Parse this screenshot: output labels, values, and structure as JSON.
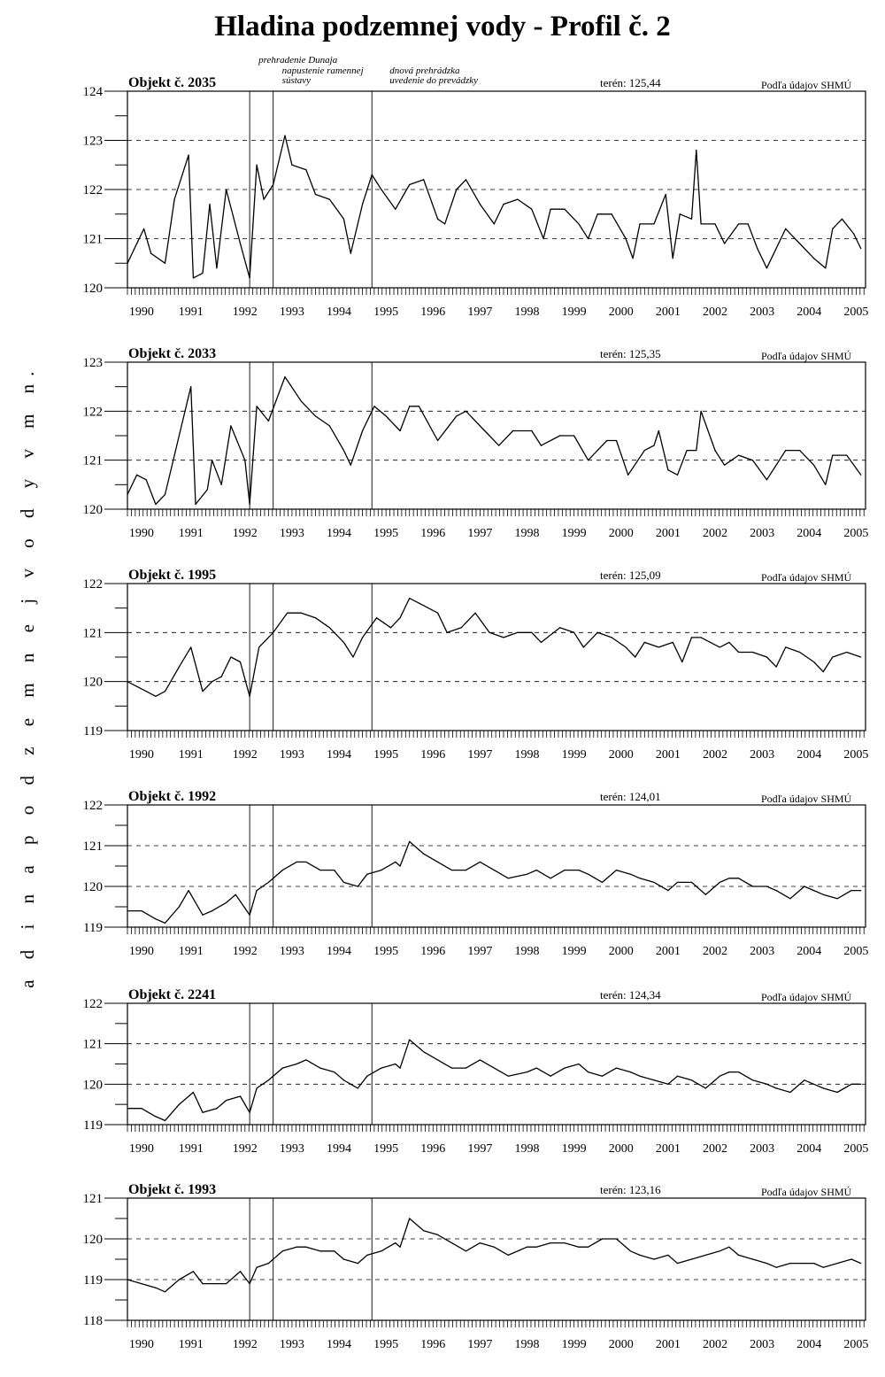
{
  "title": "Hladina podzemnej vody  - Profil č. 2",
  "y_axis_label": "H l a d i n a   p o d z e m n e j   v o d y   v   m   n.   m.",
  "events": [
    {
      "year": 1992.6,
      "text": "prehradenie Dunaja"
    },
    {
      "year": 1993.1,
      "text": "napustenie ramennej sústavy"
    },
    {
      "year": 1995.2,
      "text": "dnová prehrádzka uvedenie do prevádzky"
    }
  ],
  "source_label": "Podľa údajov SHMÚ",
  "chart_data": [
    {
      "type": "line",
      "title": "Objekt č. 2035",
      "teren": "terén:  125,44",
      "ylim": [
        120,
        124
      ],
      "yticks": [
        120,
        121,
        122,
        123,
        124
      ],
      "xticks": [
        "1990",
        "1991",
        "1992",
        "1993",
        "1994",
        "1995",
        "1996",
        "1997",
        "1998",
        "1999",
        "2000",
        "2001",
        "2002",
        "2003",
        "2004",
        "2005"
      ],
      "x": [
        1990.0,
        1990.2,
        1990.35,
        1990.5,
        1990.8,
        1991.0,
        1991.3,
        1991.4,
        1991.6,
        1991.75,
        1991.9,
        1992.1,
        1992.4,
        1992.6,
        1992.75,
        1992.9,
        1993.1,
        1993.35,
        1993.5,
        1993.8,
        1994.0,
        1994.3,
        1994.6,
        1994.75,
        1995.0,
        1995.2,
        1995.4,
        1995.7,
        1996.0,
        1996.3,
        1996.6,
        1996.75,
        1997.0,
        1997.2,
        1997.5,
        1997.8,
        1998.0,
        1998.3,
        1998.6,
        1998.85,
        1999.0,
        1999.3,
        1999.6,
        1999.8,
        2000.0,
        2000.3,
        2000.6,
        2000.75,
        2000.9,
        2001.2,
        2001.45,
        2001.6,
        2001.75,
        2002.0,
        2002.1,
        2002.2,
        2002.5,
        2002.7,
        2003.0,
        2003.2,
        2003.4,
        2003.6,
        2004.0,
        2004.3,
        2004.6,
        2004.85,
        2005.0,
        2005.2,
        2005.45,
        2005.6
      ],
      "y": [
        120.5,
        120.9,
        121.2,
        120.7,
        120.5,
        121.8,
        122.7,
        120.2,
        120.3,
        121.7,
        120.4,
        122.0,
        120.9,
        120.2,
        122.5,
        121.8,
        122.1,
        123.1,
        122.5,
        122.4,
        121.9,
        121.8,
        121.4,
        120.7,
        121.7,
        122.3,
        122.0,
        121.6,
        122.1,
        122.2,
        121.4,
        121.3,
        122.0,
        122.2,
        121.7,
        121.3,
        121.7,
        121.8,
        121.6,
        121.0,
        121.6,
        121.6,
        121.3,
        121.0,
        121.5,
        121.5,
        121.0,
        120.6,
        121.3,
        121.3,
        121.9,
        120.6,
        121.5,
        121.4,
        122.8,
        121.3,
        121.3,
        120.9,
        121.3,
        121.3,
        120.8,
        120.4,
        121.2,
        120.9,
        120.6,
        120.4,
        121.2,
        121.4,
        121.1,
        120.8
      ]
    },
    {
      "type": "line",
      "title": "Objekt č. 2033",
      "teren": "terén:  125,35",
      "ylim": [
        120,
        123
      ],
      "yticks": [
        120,
        121,
        122,
        123
      ],
      "xticks": [
        "1990",
        "1991",
        "1992",
        "1993",
        "1994",
        "1995",
        "1996",
        "1997",
        "1998",
        "1999",
        "2000",
        "2001",
        "2002",
        "2003",
        "2004",
        "2005"
      ],
      "x": [
        1990.0,
        1990.2,
        1990.4,
        1990.6,
        1990.8,
        1991.1,
        1991.35,
        1991.45,
        1991.7,
        1991.8,
        1992.0,
        1992.2,
        1992.5,
        1992.6,
        1992.75,
        1993.0,
        1993.35,
        1993.7,
        1994.0,
        1994.3,
        1994.6,
        1994.75,
        1995.0,
        1995.25,
        1995.5,
        1995.8,
        1996.0,
        1996.2,
        1996.6,
        1997.0,
        1997.2,
        1997.6,
        1997.9,
        1998.2,
        1998.6,
        1998.8,
        1999.2,
        1999.5,
        1999.8,
        2000.2,
        2000.4,
        2000.65,
        2001.0,
        2001.2,
        2001.3,
        2001.5,
        2001.7,
        2001.9,
        2002.1,
        2002.2,
        2002.5,
        2002.7,
        2003.0,
        2003.3,
        2003.6,
        2004.0,
        2004.3,
        2004.6,
        2004.85,
        2005.0,
        2005.3,
        2005.6
      ],
      "y": [
        120.3,
        120.7,
        120.6,
        120.1,
        120.3,
        121.5,
        122.5,
        120.1,
        120.4,
        121.0,
        120.5,
        121.7,
        121.0,
        120.1,
        122.1,
        121.8,
        122.7,
        122.2,
        121.9,
        121.7,
        121.2,
        120.9,
        121.6,
        122.1,
        121.9,
        121.6,
        122.1,
        122.1,
        121.4,
        121.9,
        122.0,
        121.6,
        121.3,
        121.6,
        121.6,
        121.3,
        121.5,
        121.5,
        121.0,
        121.4,
        121.4,
        120.7,
        121.2,
        121.3,
        121.6,
        120.8,
        120.7,
        121.2,
        121.2,
        122.0,
        121.2,
        120.9,
        121.1,
        121.0,
        120.6,
        121.2,
        121.2,
        120.9,
        120.5,
        121.1,
        121.1,
        120.7
      ]
    },
    {
      "type": "line",
      "title": "Objekt č. 1995",
      "teren": "terén:  125,09",
      "ylim": [
        119,
        122
      ],
      "yticks": [
        119,
        120,
        121,
        122
      ],
      "xticks": [
        "1990",
        "1991",
        "1992",
        "1993",
        "1994",
        "1995",
        "1996",
        "1997",
        "1998",
        "1999",
        "2000",
        "2001",
        "2002",
        "2003",
        "2004",
        "2005"
      ],
      "x": [
        1990.0,
        1990.2,
        1990.4,
        1990.6,
        1990.8,
        1991.1,
        1991.35,
        1991.6,
        1991.8,
        1992.0,
        1992.2,
        1992.4,
        1992.6,
        1992.8,
        1993.1,
        1993.4,
        1993.7,
        1994.0,
        1994.3,
        1994.6,
        1994.8,
        1995.0,
        1995.3,
        1995.6,
        1995.8,
        1996.0,
        1996.2,
        1996.6,
        1996.8,
        1997.1,
        1997.4,
        1997.7,
        1998.0,
        1998.3,
        1998.6,
        1998.8,
        1999.2,
        1999.5,
        1999.7,
        2000.0,
        2000.3,
        2000.6,
        2000.8,
        2001.0,
        2001.3,
        2001.6,
        2001.8,
        2002.0,
        2002.2,
        2002.6,
        2002.8,
        2003.0,
        2003.3,
        2003.6,
        2003.8,
        2004.0,
        2004.3,
        2004.6,
        2004.8,
        2005.0,
        2005.3,
        2005.6
      ],
      "y": [
        120.0,
        119.9,
        119.8,
        119.7,
        119.8,
        120.3,
        120.7,
        119.8,
        120.0,
        120.1,
        120.5,
        120.4,
        119.7,
        120.7,
        121.0,
        121.4,
        121.4,
        121.3,
        121.1,
        120.8,
        120.5,
        120.9,
        121.3,
        121.1,
        121.3,
        121.7,
        121.6,
        121.4,
        121.0,
        121.1,
        121.4,
        121.0,
        120.9,
        121.0,
        121.0,
        120.8,
        121.1,
        121.0,
        120.7,
        121.0,
        120.9,
        120.7,
        120.5,
        120.8,
        120.7,
        120.8,
        120.4,
        120.9,
        120.9,
        120.7,
        120.8,
        120.6,
        120.6,
        120.5,
        120.3,
        120.7,
        120.6,
        120.4,
        120.2,
        120.5,
        120.6,
        120.5
      ]
    },
    {
      "type": "line",
      "title": "Objekt č. 1992",
      "teren": "terén:  124,01",
      "ylim": [
        119,
        122
      ],
      "yticks": [
        119,
        120,
        121,
        122
      ],
      "xticks": [
        "1990",
        "1991",
        "1992",
        "1993",
        "1994",
        "1995",
        "1996",
        "1997",
        "1998",
        "1999",
        "2000",
        "2001",
        "2002",
        "2003",
        "2004",
        "2005"
      ],
      "x": [
        1990.0,
        1990.3,
        1990.6,
        1990.8,
        1991.1,
        1991.3,
        1991.6,
        1991.8,
        1992.1,
        1992.3,
        1992.6,
        1992.75,
        1993.0,
        1993.3,
        1993.6,
        1993.8,
        1994.1,
        1994.4,
        1994.6,
        1994.9,
        1995.1,
        1995.4,
        1995.7,
        1995.8,
        1996.0,
        1996.3,
        1996.6,
        1996.9,
        1997.2,
        1997.5,
        1997.8,
        1998.1,
        1998.5,
        1998.7,
        1999.0,
        1999.3,
        1999.6,
        1999.8,
        2000.1,
        2000.4,
        2000.7,
        2000.9,
        2001.2,
        2001.5,
        2001.7,
        2002.0,
        2002.3,
        2002.6,
        2002.8,
        2003.0,
        2003.3,
        2003.6,
        2003.8,
        2004.1,
        2004.4,
        2004.6,
        2004.8,
        2005.1,
        2005.4,
        2005.6
      ],
      "y": [
        119.4,
        119.4,
        119.2,
        119.1,
        119.5,
        119.9,
        119.3,
        119.4,
        119.6,
        119.8,
        119.3,
        119.9,
        120.1,
        120.4,
        120.6,
        120.6,
        120.4,
        120.4,
        120.1,
        120.0,
        120.3,
        120.4,
        120.6,
        120.5,
        121.1,
        120.8,
        120.6,
        120.4,
        120.4,
        120.6,
        120.4,
        120.2,
        120.3,
        120.4,
        120.2,
        120.4,
        120.4,
        120.3,
        120.1,
        120.4,
        120.3,
        120.2,
        120.1,
        119.9,
        120.1,
        120.1,
        119.8,
        120.1,
        120.2,
        120.2,
        120.0,
        120.0,
        119.9,
        119.7,
        120.0,
        119.9,
        119.8,
        119.7,
        119.9,
        119.9
      ]
    },
    {
      "type": "line",
      "title": "Objekt č. 2241",
      "teren": "terén:  124,34",
      "ylim": [
        119,
        122
      ],
      "yticks": [
        119,
        120,
        121,
        122
      ],
      "xticks": [
        "1990",
        "1991",
        "1992",
        "1993",
        "1994",
        "1995",
        "1996",
        "1997",
        "1998",
        "1999",
        "2000",
        "2001",
        "2002",
        "2003",
        "2004",
        "2005"
      ],
      "x": [
        1990.0,
        1990.3,
        1990.6,
        1990.8,
        1991.1,
        1991.4,
        1991.6,
        1991.9,
        1992.1,
        1992.4,
        1992.6,
        1992.75,
        1993.0,
        1993.3,
        1993.6,
        1993.8,
        1994.1,
        1994.4,
        1994.6,
        1994.9,
        1995.1,
        1995.4,
        1995.7,
        1995.8,
        1996.0,
        1996.3,
        1996.6,
        1996.9,
        1997.2,
        1997.5,
        1997.8,
        1998.1,
        1998.5,
        1998.7,
        1999.0,
        1999.3,
        1999.6,
        1999.8,
        2000.1,
        2000.4,
        2000.7,
        2000.9,
        2001.2,
        2001.5,
        2001.7,
        2002.0,
        2002.3,
        2002.6,
        2002.8,
        2003.0,
        2003.3,
        2003.6,
        2003.8,
        2004.1,
        2004.4,
        2004.6,
        2004.8,
        2005.1,
        2005.4,
        2005.6
      ],
      "y": [
        119.4,
        119.4,
        119.2,
        119.1,
        119.5,
        119.8,
        119.3,
        119.4,
        119.6,
        119.7,
        119.3,
        119.9,
        120.1,
        120.4,
        120.5,
        120.6,
        120.4,
        120.3,
        120.1,
        119.9,
        120.2,
        120.4,
        120.5,
        120.4,
        121.1,
        120.8,
        120.6,
        120.4,
        120.4,
        120.6,
        120.4,
        120.2,
        120.3,
        120.4,
        120.2,
        120.4,
        120.5,
        120.3,
        120.2,
        120.4,
        120.3,
        120.2,
        120.1,
        120.0,
        120.2,
        120.1,
        119.9,
        120.2,
        120.3,
        120.3,
        120.1,
        120.0,
        119.9,
        119.8,
        120.1,
        120.0,
        119.9,
        119.8,
        120.0,
        120.0
      ]
    },
    {
      "type": "line",
      "title": "Objekt č. 1993",
      "teren": "terén:  123,16",
      "ylim": [
        118,
        121
      ],
      "yticks": [
        118,
        119,
        120,
        121
      ],
      "xticks": [
        "1990",
        "1991",
        "1992",
        "1993",
        "1994",
        "1995",
        "1996",
        "1997",
        "1998",
        "1999",
        "2000",
        "2001",
        "2002",
        "2003",
        "2004",
        "2005"
      ],
      "x": [
        1990.0,
        1990.3,
        1990.6,
        1990.8,
        1991.1,
        1991.4,
        1991.6,
        1991.9,
        1992.1,
        1992.4,
        1992.6,
        1992.75,
        1993.0,
        1993.3,
        1993.6,
        1993.8,
        1994.1,
        1994.4,
        1994.6,
        1994.9,
        1995.1,
        1995.4,
        1995.7,
        1995.8,
        1996.0,
        1996.3,
        1996.6,
        1996.9,
        1997.2,
        1997.5,
        1997.8,
        1998.1,
        1998.5,
        1998.7,
        1999.0,
        1999.3,
        1999.6,
        1999.8,
        2000.1,
        2000.4,
        2000.7,
        2000.9,
        2001.2,
        2001.5,
        2001.7,
        2002.0,
        2002.3,
        2002.6,
        2002.8,
        2003.0,
        2003.3,
        2003.6,
        2003.8,
        2004.1,
        2004.4,
        2004.6,
        2004.8,
        2005.1,
        2005.4,
        2005.6
      ],
      "y": [
        119.0,
        118.9,
        118.8,
        118.7,
        119.0,
        119.2,
        118.9,
        118.9,
        118.9,
        119.2,
        118.9,
        119.3,
        119.4,
        119.7,
        119.8,
        119.8,
        119.7,
        119.7,
        119.5,
        119.4,
        119.6,
        119.7,
        119.9,
        119.8,
        120.5,
        120.2,
        120.1,
        119.9,
        119.7,
        119.9,
        119.8,
        119.6,
        119.8,
        119.8,
        119.9,
        119.9,
        119.8,
        119.8,
        120.0,
        120.0,
        119.7,
        119.6,
        119.5,
        119.6,
        119.4,
        119.5,
        119.6,
        119.7,
        119.8,
        119.6,
        119.5,
        119.4,
        119.3,
        119.4,
        119.4,
        119.4,
        119.3,
        119.4,
        119.5,
        119.4
      ]
    }
  ]
}
